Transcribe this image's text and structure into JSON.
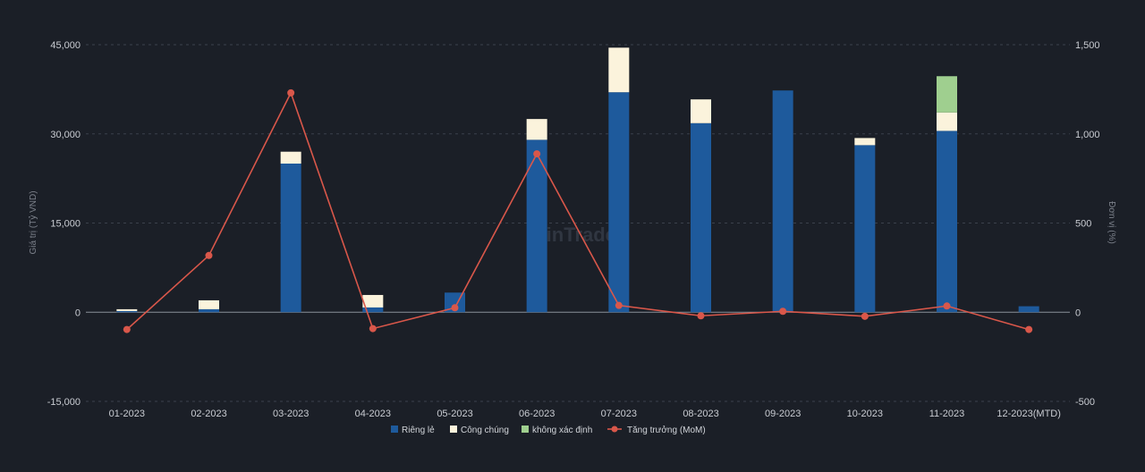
{
  "chart_data": {
    "type": "bar",
    "stacked": true,
    "categories": [
      "01-2023",
      "02-2023",
      "03-2023",
      "04-2023",
      "05-2023",
      "06-2023",
      "07-2023",
      "08-2023",
      "09-2023",
      "10-2023",
      "11-2023",
      "12-2023(MTD)"
    ],
    "series": [
      {
        "name": "Riêng lẻ",
        "type": "bar",
        "axis": "left",
        "color": "#1e5a9c",
        "values": [
          200,
          500,
          25000,
          800,
          3300,
          29000,
          37000,
          31800,
          37300,
          28100,
          30500,
          1000
        ]
      },
      {
        "name": "Công chúng",
        "type": "bar",
        "axis": "left",
        "color": "#fbf3dc",
        "values": [
          300,
          1500,
          2000,
          2100,
          0,
          3500,
          7500,
          4000,
          0,
          1200,
          3100,
          0
        ]
      },
      {
        "name": "không xác định",
        "type": "bar",
        "axis": "left",
        "color": "#9fcf8f",
        "values": [
          0,
          0,
          0,
          0,
          0,
          0,
          0,
          0,
          0,
          0,
          6100,
          0
        ]
      },
      {
        "name": "Tăng trưởng (MoM)",
        "type": "line",
        "axis": "right",
        "color": "#d9574a",
        "values": [
          -97,
          318,
          1230,
          -92,
          25,
          888,
          38,
          -20,
          5,
          -23,
          35,
          -97
        ]
      }
    ],
    "ylabel": "Giá trị (Tỷ VND)",
    "y2label": "Đơn vị (%)",
    "ylim": [
      -15000,
      45000
    ],
    "y2lim": [
      -500,
      1500
    ],
    "yticks": [
      "45,000",
      "30,000",
      "15,000",
      "0",
      "-15,000"
    ],
    "y2ticks": [
      "1,500",
      "1,000",
      "500",
      "0",
      "-500"
    ],
    "legend_position": "bottom",
    "grid": true,
    "watermark": "FiinTrade"
  }
}
